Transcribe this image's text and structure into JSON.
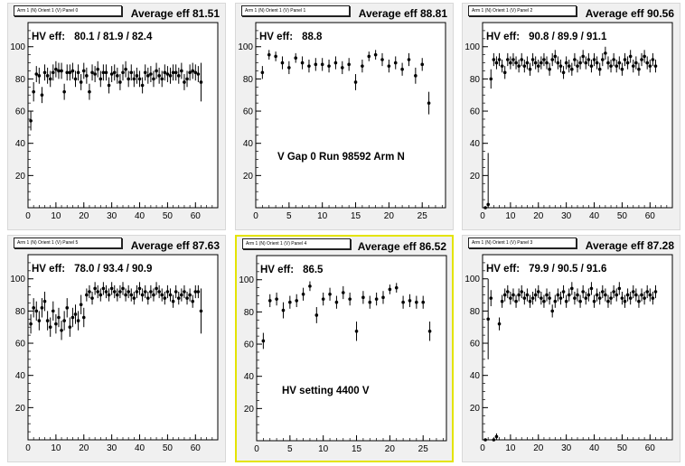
{
  "colors": {
    "pad_bg": "#f0f0f0",
    "frame_bg": "#ffffff",
    "marker": "#000000",
    "selected_border": "#e4e400"
  },
  "chart_data": [
    {
      "type": "scatter",
      "title": "Arm 1 (N) Orient 1 (V) Panel 0",
      "average_label": "Average eff 81.51",
      "hv_label": "HV eff:",
      "hv_values": "80.1 / 81.9 / 82.4",
      "xlim": [
        0,
        68
      ],
      "ylim": [
        0,
        115
      ],
      "xticks": [
        "0",
        "10",
        "20",
        "30",
        "40",
        "50",
        "60"
      ],
      "yticks": [
        "20",
        "40",
        "60",
        "80",
        "100"
      ],
      "error_bars": true,
      "x": [
        1,
        2,
        3,
        4,
        5,
        6,
        7,
        8,
        9,
        10,
        11,
        12,
        13,
        14,
        15,
        16,
        17,
        18,
        19,
        20,
        21,
        22,
        23,
        24,
        25,
        26,
        27,
        28,
        29,
        30,
        31,
        32,
        33,
        34,
        35,
        36,
        37,
        38,
        39,
        40,
        41,
        42,
        43,
        44,
        45,
        46,
        47,
        48,
        49,
        50,
        51,
        52,
        53,
        54,
        55,
        56,
        57,
        58,
        59,
        60,
        61,
        62
      ],
      "y": [
        54,
        72,
        83,
        82,
        70,
        84,
        82,
        80,
        84,
        86,
        85,
        85,
        72,
        84,
        84,
        85,
        80,
        84,
        78,
        85,
        82,
        72,
        84,
        83,
        86,
        80,
        84,
        84,
        76,
        83,
        84,
        82,
        78,
        84,
        86,
        80,
        84,
        80,
        82,
        80,
        76,
        84,
        82,
        83,
        80,
        85,
        82,
        80,
        84,
        83,
        82,
        84,
        84,
        82,
        85,
        78,
        80,
        84,
        85,
        84,
        83,
        78
      ],
      "yerr": [
        6,
        6,
        5,
        5,
        5,
        5,
        5,
        5,
        5,
        5,
        5,
        5,
        5,
        5,
        5,
        5,
        5,
        5,
        5,
        5,
        5,
        5,
        5,
        5,
        5,
        5,
        5,
        5,
        5,
        5,
        5,
        5,
        5,
        5,
        5,
        5,
        5,
        5,
        5,
        5,
        5,
        5,
        5,
        5,
        5,
        5,
        5,
        5,
        5,
        5,
        5,
        5,
        5,
        5,
        5,
        5,
        5,
        5,
        5,
        5,
        5,
        12
      ]
    },
    {
      "type": "scatter",
      "title": "Arm 1 (N) Orient 1 (V) Panel 1",
      "average_label": "Average eff 88.81",
      "hv_label": "HV eff:",
      "hv_values": "88.8",
      "annotation": "V Gap 0 Run 98592 Arm N",
      "xlim": [
        0,
        28.5
      ],
      "ylim": [
        0,
        115
      ],
      "xticks": [
        "0",
        "5",
        "10",
        "15",
        "20",
        "25"
      ],
      "yticks": [
        "20",
        "40",
        "60",
        "80",
        "100"
      ],
      "error_bars": true,
      "x": [
        1,
        2,
        3,
        4,
        5,
        6,
        7,
        8,
        9,
        10,
        11,
        12,
        13,
        14,
        15,
        16,
        17,
        18,
        19,
        20,
        21,
        22,
        23,
        24,
        25,
        26
      ],
      "y": [
        84,
        95,
        94,
        90,
        87,
        93,
        90,
        88,
        89,
        89,
        88,
        90,
        87,
        89,
        78,
        88,
        94,
        95,
        92,
        88,
        90,
        86,
        92,
        82,
        89,
        65
      ],
      "yerr": [
        4,
        3,
        3,
        4,
        4,
        3,
        4,
        4,
        4,
        4,
        4,
        4,
        4,
        4,
        5,
        4,
        3,
        3,
        4,
        4,
        4,
        4,
        4,
        5,
        4,
        7
      ]
    },
    {
      "type": "scatter",
      "title": "Arm 1 (N) Orient 1 (V) Panel 2",
      "average_label": "Average eff 90.56",
      "hv_label": "HV eff:",
      "hv_values": "90.8 / 89.9 / 91.1",
      "xlim": [
        0,
        68
      ],
      "ylim": [
        0,
        115
      ],
      "xticks": [
        "0",
        "10",
        "20",
        "30",
        "40",
        "50",
        "60"
      ],
      "yticks": [
        "20",
        "40",
        "60",
        "80",
        "100"
      ],
      "error_bars": true,
      "x": [
        1,
        2,
        3,
        4,
        5,
        6,
        7,
        8,
        9,
        10,
        11,
        12,
        13,
        14,
        15,
        16,
        17,
        18,
        19,
        20,
        21,
        22,
        23,
        24,
        25,
        26,
        27,
        28,
        29,
        30,
        31,
        32,
        33,
        34,
        35,
        36,
        37,
        38,
        39,
        40,
        41,
        42,
        43,
        44,
        45,
        46,
        47,
        48,
        49,
        50,
        51,
        52,
        53,
        54,
        55,
        56,
        57,
        58,
        59,
        60,
        61,
        62
      ],
      "y": [
        0,
        2,
        80,
        92,
        90,
        92,
        88,
        84,
        92,
        90,
        92,
        90,
        88,
        92,
        88,
        90,
        86,
        92,
        90,
        88,
        90,
        92,
        90,
        86,
        92,
        94,
        90,
        88,
        84,
        90,
        88,
        86,
        92,
        88,
        90,
        94,
        90,
        92,
        88,
        92,
        90,
        86,
        92,
        96,
        90,
        88,
        92,
        88,
        90,
        86,
        92,
        90,
        94,
        88,
        90,
        86,
        92,
        94,
        90,
        88,
        92,
        88
      ],
      "yerr": [
        0,
        32,
        6,
        4,
        4,
        4,
        4,
        4,
        4,
        4,
        4,
        4,
        4,
        4,
        4,
        4,
        4,
        4,
        4,
        4,
        4,
        4,
        4,
        4,
        4,
        4,
        4,
        4,
        4,
        4,
        4,
        4,
        4,
        4,
        4,
        4,
        4,
        4,
        4,
        4,
        4,
        4,
        4,
        4,
        4,
        4,
        4,
        4,
        4,
        4,
        4,
        4,
        4,
        4,
        4,
        4,
        4,
        4,
        4,
        4,
        4,
        4
      ]
    },
    {
      "type": "scatter",
      "title": "Arm 1 (N) Orient 1 (V) Panel 5",
      "average_label": "Average eff 87.63",
      "hv_label": "HV eff:",
      "hv_values": "78.0 / 93.4 / 90.9",
      "xlim": [
        0,
        68
      ],
      "ylim": [
        0,
        115
      ],
      "xticks": [
        "0",
        "10",
        "20",
        "30",
        "40",
        "50",
        "60"
      ],
      "yticks": [
        "20",
        "40",
        "60",
        "80",
        "100"
      ],
      "error_bars": true,
      "x": [
        1,
        2,
        3,
        4,
        5,
        6,
        7,
        8,
        9,
        10,
        11,
        12,
        13,
        14,
        15,
        16,
        17,
        18,
        19,
        20,
        21,
        22,
        23,
        24,
        25,
        26,
        27,
        28,
        29,
        30,
        31,
        32,
        33,
        34,
        35,
        36,
        37,
        38,
        39,
        40,
        41,
        42,
        43,
        44,
        45,
        46,
        47,
        48,
        49,
        50,
        51,
        52,
        53,
        54,
        55,
        56,
        57,
        58,
        59,
        60,
        61,
        62
      ],
      "y": [
        72,
        82,
        80,
        74,
        82,
        86,
        74,
        70,
        80,
        72,
        76,
        68,
        74,
        82,
        70,
        76,
        78,
        74,
        84,
        76,
        90,
        92,
        88,
        94,
        92,
        90,
        94,
        92,
        90,
        94,
        92,
        90,
        92,
        94,
        90,
        92,
        90,
        88,
        92,
        94,
        90,
        92,
        88,
        92,
        90,
        94,
        92,
        90,
        88,
        92,
        90,
        86,
        92,
        88,
        90,
        92,
        88,
        90,
        86,
        92,
        92,
        80
      ],
      "yerr": [
        6,
        6,
        6,
        6,
        6,
        6,
        6,
        6,
        6,
        6,
        6,
        6,
        6,
        6,
        6,
        6,
        6,
        6,
        6,
        6,
        4,
        4,
        4,
        4,
        4,
        4,
        4,
        4,
        4,
        4,
        4,
        4,
        4,
        4,
        4,
        4,
        4,
        4,
        4,
        4,
        4,
        4,
        4,
        4,
        4,
        4,
        4,
        4,
        4,
        4,
        4,
        4,
        4,
        4,
        4,
        4,
        4,
        4,
        4,
        4,
        4,
        14
      ]
    },
    {
      "type": "scatter",
      "title": "Arm 1 (N) Orient 1 (V) Panel 4",
      "average_label": "Average eff 86.52",
      "hv_label": "HV eff:",
      "hv_values": "86.5",
      "annotation": "HV setting 4400 V",
      "xlim": [
        0,
        28.5
      ],
      "ylim": [
        0,
        115
      ],
      "xticks": [
        "0",
        "5",
        "10",
        "15",
        "20",
        "25"
      ],
      "yticks": [
        "20",
        "40",
        "60",
        "80",
        "100"
      ],
      "error_bars": true,
      "x": [
        1,
        2,
        3,
        4,
        5,
        6,
        7,
        8,
        9,
        10,
        11,
        12,
        13,
        14,
        15,
        16,
        17,
        18,
        19,
        20,
        21,
        22,
        23,
        24,
        25,
        26
      ],
      "y": [
        62,
        87,
        88,
        81,
        86,
        87,
        91,
        96,
        78,
        88,
        91,
        86,
        92,
        88,
        68,
        89,
        86,
        88,
        89,
        94,
        95,
        86,
        87,
        86,
        86,
        68
      ],
      "yerr": [
        5,
        4,
        4,
        5,
        4,
        4,
        4,
        3,
        5,
        4,
        4,
        4,
        4,
        4,
        6,
        4,
        4,
        4,
        4,
        3,
        3,
        4,
        4,
        4,
        4,
        6
      ]
    },
    {
      "type": "scatter",
      "title": "Arm 1 (N) Orient 1 (V) Panel 3",
      "average_label": "Average eff 87.28",
      "hv_label": "HV eff:",
      "hv_values": "79.9 / 90.5 / 91.6",
      "xlim": [
        0,
        68
      ],
      "ylim": [
        0,
        115
      ],
      "xticks": [
        "0",
        "10",
        "20",
        "30",
        "40",
        "50",
        "60"
      ],
      "yticks": [
        "20",
        "40",
        "60",
        "80",
        "100"
      ],
      "error_bars": true,
      "x": [
        1,
        2,
        3,
        4,
        5,
        6,
        7,
        8,
        9,
        10,
        11,
        12,
        13,
        14,
        15,
        16,
        17,
        18,
        19,
        20,
        21,
        22,
        23,
        24,
        25,
        26,
        27,
        28,
        29,
        30,
        31,
        32,
        33,
        34,
        35,
        36,
        37,
        38,
        39,
        40,
        41,
        42,
        43,
        44,
        45,
        46,
        47,
        48,
        49,
        50,
        51,
        52,
        53,
        54,
        55,
        56,
        57,
        58,
        59,
        60,
        61,
        62
      ],
      "y": [
        0,
        75,
        88,
        0,
        2,
        72,
        86,
        90,
        92,
        88,
        90,
        86,
        90,
        92,
        88,
        90,
        86,
        88,
        90,
        92,
        88,
        86,
        90,
        88,
        80,
        86,
        90,
        88,
        92,
        86,
        90,
        94,
        88,
        90,
        86,
        92,
        88,
        90,
        94,
        86,
        90,
        88,
        92,
        90,
        86,
        88,
        92,
        90,
        94,
        88,
        86,
        90,
        88,
        92,
        90,
        86,
        90,
        88,
        92,
        90,
        88,
        92
      ],
      "yerr": [
        0,
        25,
        5,
        0,
        2,
        4,
        4,
        4,
        4,
        4,
        4,
        4,
        4,
        4,
        4,
        4,
        4,
        4,
        4,
        4,
        4,
        4,
        4,
        4,
        4,
        4,
        4,
        4,
        4,
        4,
        4,
        4,
        4,
        4,
        4,
        4,
        4,
        4,
        4,
        4,
        4,
        4,
        4,
        4,
        4,
        4,
        4,
        4,
        4,
        4,
        4,
        4,
        4,
        4,
        4,
        4,
        4,
        4,
        4,
        4,
        4,
        4
      ]
    }
  ]
}
